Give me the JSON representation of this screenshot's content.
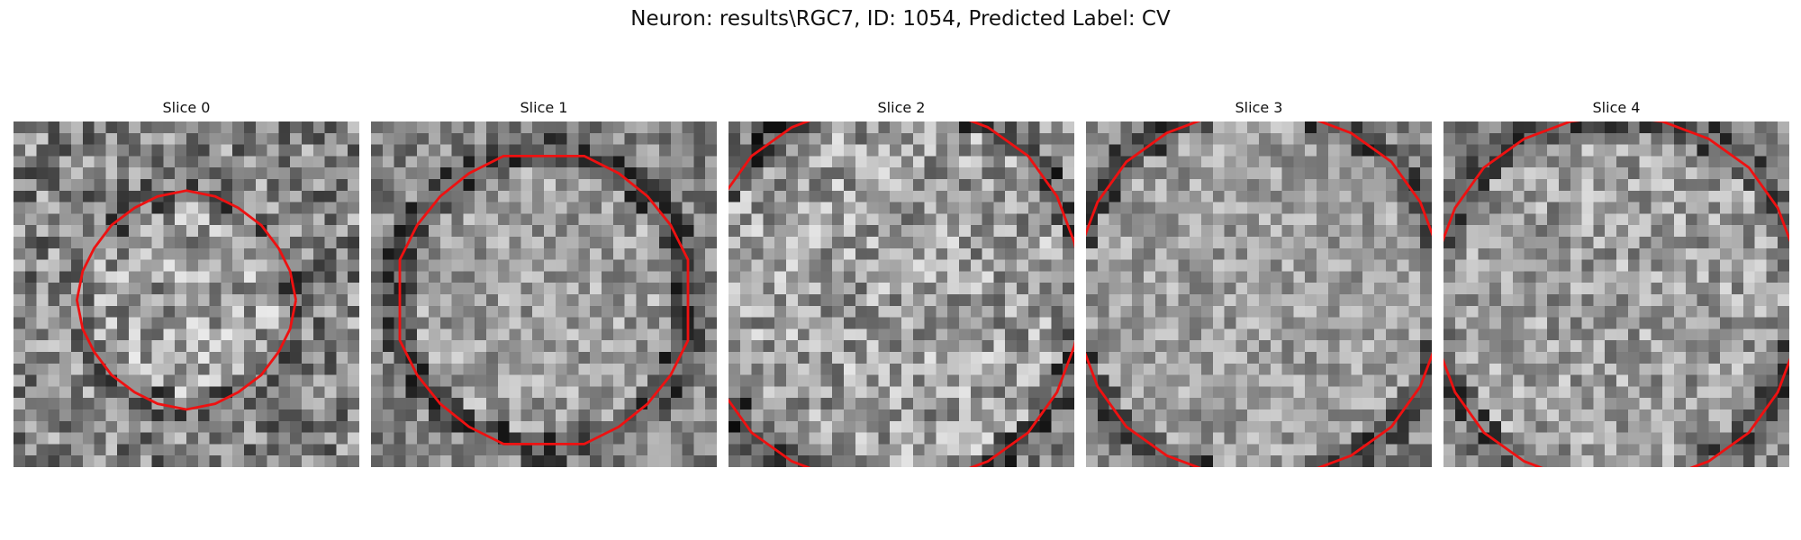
{
  "figure": {
    "title": "Neuron: results\\RGC7, ID: 1054, Predicted Label: CV",
    "contour_color": "#ee1111"
  },
  "panels": [
    {
      "title": "Slice 0",
      "seed": 11,
      "contrast": 0.3,
      "ring_dark": 0.1
    },
    {
      "title": "Slice 1",
      "seed": 23,
      "contrast": 0.22,
      "ring_dark": 0.22
    },
    {
      "title": "Slice 2",
      "seed": 37,
      "contrast": 0.28,
      "ring_dark": 0.2
    },
    {
      "title": "Slice 3",
      "seed": 41,
      "contrast": 0.2,
      "ring_dark": 0.22
    },
    {
      "title": "Slice 4",
      "seed": 53,
      "contrast": 0.24,
      "ring_dark": 0.18
    }
  ]
}
